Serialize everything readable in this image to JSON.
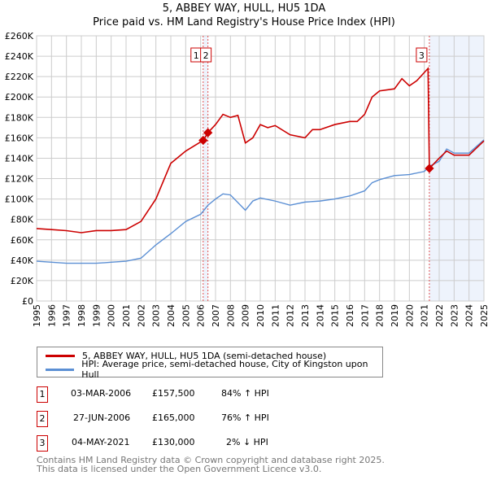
{
  "title": "5, ABBEY WAY, HULL, HU5 1DA",
  "subtitle": "Price paid vs. HM Land Registry's House Price Index (HPI)",
  "chart_data": {
    "type": "line",
    "xlim": [
      1995,
      2025
    ],
    "ylim": [
      0,
      260000
    ],
    "x_ticks": [
      "1995",
      "1996",
      "1997",
      "1998",
      "1999",
      "2000",
      "2001",
      "2002",
      "2003",
      "2004",
      "2005",
      "2006",
      "2007",
      "2008",
      "2009",
      "2010",
      "2011",
      "2012",
      "2013",
      "2014",
      "2015",
      "2016",
      "2017",
      "2018",
      "2019",
      "2020",
      "2021",
      "2022",
      "2023",
      "2024",
      "2025"
    ],
    "y_ticks": [
      "£0",
      "£20K",
      "£40K",
      "£60K",
      "£80K",
      "£100K",
      "£120K",
      "£140K",
      "£160K",
      "£180K",
      "£200K",
      "£220K",
      "£240K",
      "£260K"
    ],
    "grid": true,
    "series": [
      {
        "name": "5, ABBEY WAY, HULL, HU5 1DA (semi-detached house)",
        "color": "#cc0000",
        "points": [
          [
            1995,
            71
          ],
          [
            1996,
            70
          ],
          [
            1997,
            69
          ],
          [
            1998,
            67
          ],
          [
            1999,
            69
          ],
          [
            2000,
            69
          ],
          [
            2001,
            70
          ],
          [
            2002,
            78
          ],
          [
            2003,
            100
          ],
          [
            2004,
            135
          ],
          [
            2005,
            147
          ],
          [
            2006.17,
            157.5
          ],
          [
            2006.49,
            165
          ],
          [
            2007,
            173
          ],
          [
            2007.5,
            183
          ],
          [
            2008,
            180
          ],
          [
            2008.5,
            182
          ],
          [
            2009,
            155
          ],
          [
            2009.5,
            160
          ],
          [
            2010,
            173
          ],
          [
            2010.5,
            170
          ],
          [
            2011,
            172
          ],
          [
            2012,
            163
          ],
          [
            2013,
            160
          ],
          [
            2013.5,
            168
          ],
          [
            2014,
            168
          ],
          [
            2015,
            173
          ],
          [
            2016,
            176
          ],
          [
            2016.5,
            176
          ],
          [
            2017,
            183
          ],
          [
            2017.5,
            200
          ],
          [
            2018,
            206
          ],
          [
            2019,
            208
          ],
          [
            2019.5,
            218
          ],
          [
            2020,
            211
          ],
          [
            2020.5,
            216
          ],
          [
            2021.25,
            228
          ],
          [
            2021.34,
            130
          ],
          [
            2022,
            140
          ],
          [
            2022.5,
            147
          ],
          [
            2023,
            143
          ],
          [
            2024,
            143
          ],
          [
            2025,
            157
          ]
        ]
      },
      {
        "name": "HPI: Average price, semi-detached house, City of Kingston upon Hull",
        "color": "#5b8fd4",
        "points": [
          [
            1995,
            39
          ],
          [
            1996,
            38
          ],
          [
            1997,
            37
          ],
          [
            1998,
            37
          ],
          [
            1999,
            37
          ],
          [
            2000,
            38
          ],
          [
            2001,
            39
          ],
          [
            2002,
            42
          ],
          [
            2003,
            55
          ],
          [
            2004,
            66
          ],
          [
            2005,
            78
          ],
          [
            2006,
            85
          ],
          [
            2006.5,
            94
          ],
          [
            2007,
            100
          ],
          [
            2007.5,
            105
          ],
          [
            2008,
            104
          ],
          [
            2009,
            89
          ],
          [
            2009.5,
            98
          ],
          [
            2010,
            101
          ],
          [
            2011,
            98
          ],
          [
            2012,
            94
          ],
          [
            2013,
            97
          ],
          [
            2014,
            98
          ],
          [
            2015,
            100
          ],
          [
            2016,
            103
          ],
          [
            2017,
            108
          ],
          [
            2017.5,
            116
          ],
          [
            2018,
            119
          ],
          [
            2019,
            123
          ],
          [
            2020,
            124
          ],
          [
            2021,
            127
          ],
          [
            2021.34,
            132
          ],
          [
            2022,
            137
          ],
          [
            2022.5,
            149
          ],
          [
            2023,
            145
          ],
          [
            2024,
            145
          ],
          [
            2025,
            158
          ]
        ]
      }
    ],
    "sales": [
      {
        "label": "1",
        "date": "03-MAR-2006",
        "x": 2006.17,
        "price": "£157,500",
        "value": 157.5,
        "hpi": "84% ↑ HPI"
      },
      {
        "label": "2",
        "date": "27-JUN-2006",
        "x": 2006.49,
        "price": "£165,000",
        "value": 165,
        "hpi": "76% ↑ HPI"
      },
      {
        "label": "3",
        "date": "04-MAY-2021",
        "x": 2021.34,
        "price": "£130,000",
        "value": 130,
        "hpi": "2% ↓ HPI"
      }
    ],
    "shaded_from": 2021.34
  },
  "footer": [
    "Contains HM Land Registry data © Crown copyright and database right 2025.",
    "This data is licensed under the Open Government Licence v3.0."
  ]
}
